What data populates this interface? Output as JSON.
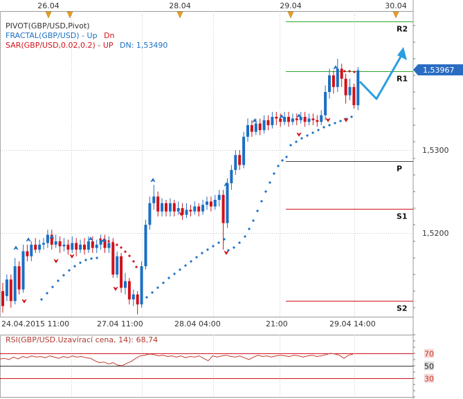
{
  "header": {
    "top_dates": [
      "26.04",
      "28.04",
      "29.04",
      "30.04"
    ]
  },
  "legend": {
    "line1": "PIVOT(GBP/USD,Pivot)",
    "line2_name": "FRACTAL(GBP/USD)",
    "line2_sep": " - ",
    "line2_up": "Up",
    "line2_dn": "Dn",
    "line3_name": "SAR(GBP/USD,0.02,0.2)",
    "line3_sep": " - ",
    "line3_up": "UP",
    "line3_dn": "DN: 1,53490"
  },
  "colors": {
    "bull": "#1a6fc4",
    "bear": "#d0111a",
    "sar_up": "#1a6fc4",
    "sar_dn": "#d0111a",
    "pivot_green": "#2ea52e",
    "pivot_red": "#d0111a",
    "pivot_dark": "#444444",
    "arrow": "#2a9ee0",
    "grid": "#c8c8c8",
    "rsi_line": "#c0392b",
    "legend_blue": "#1a6fc4",
    "legend_red": "#d0111a",
    "price_box": "#2a6cc2"
  },
  "chart_data": [
    {
      "type": "candlestick",
      "y_ticks": [
        "1,5200",
        "1,5300"
      ],
      "current_price": "1,53967",
      "x_tick_labels": [
        "24.04.2015 11:00",
        "27.04 11:00",
        "28.04 04:00",
        "21:00",
        "29.04 14:00"
      ],
      "ylim": [
        1.5105,
        1.5475
      ],
      "pivot_levels": [
        {
          "label": "R2",
          "value": 1.5455
        },
        {
          "label": "R1",
          "value": 1.5395
        },
        {
          "label": "P",
          "value": 1.5287
        },
        {
          "label": "S1",
          "value": 1.5229
        },
        {
          "label": "S2",
          "value": 1.5118
        }
      ],
      "sar_dn_value": "1,53490"
    },
    {
      "type": "line",
      "title": "RSI(GBP/USD.Uzavírací cena, 14): 68,74",
      "levels": [
        "70",
        "50",
        "30"
      ],
      "ylim": [
        0,
        100
      ],
      "last_value": "68,74"
    }
  ]
}
